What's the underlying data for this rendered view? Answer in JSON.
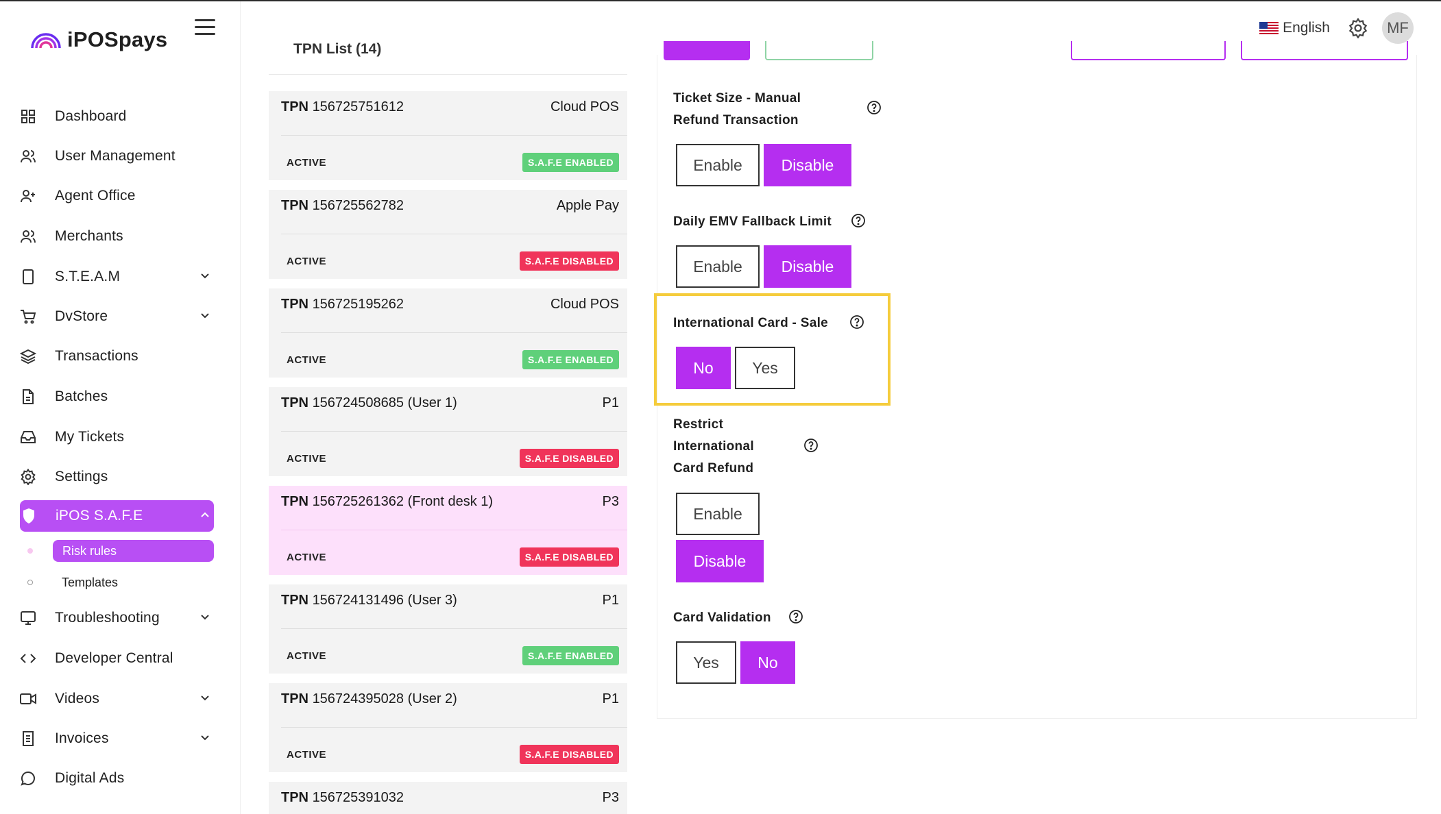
{
  "app": {
    "brand": "iPOSpays"
  },
  "header": {
    "language": "English",
    "avatar_initials": "MF"
  },
  "sidebar": {
    "items": [
      {
        "label": "Dashboard",
        "icon": "grid-icon"
      },
      {
        "label": "User Management",
        "icon": "users-icon"
      },
      {
        "label": "Agent Office",
        "icon": "user-plus-icon"
      },
      {
        "label": "Merchants",
        "icon": "users-icon"
      },
      {
        "label": "S.T.E.A.M",
        "icon": "tablet-icon"
      },
      {
        "label": "DvStore",
        "icon": "cart-icon"
      },
      {
        "label": "Transactions",
        "icon": "layers-icon"
      },
      {
        "label": "Batches",
        "icon": "file-icon"
      },
      {
        "label": "My Tickets",
        "icon": "inbox-icon"
      },
      {
        "label": "Settings",
        "icon": "gear-icon"
      },
      {
        "label": "iPOS S.A.F.E",
        "icon": "shield-icon"
      },
      {
        "label": "Troubleshooting",
        "icon": "monitor-icon"
      },
      {
        "label": "Developer Central",
        "icon": "code-icon"
      },
      {
        "label": "Videos",
        "icon": "video-icon"
      },
      {
        "label": "Invoices",
        "icon": "invoice-icon"
      },
      {
        "label": "Digital Ads",
        "icon": "chat-icon"
      }
    ],
    "sub_items": [
      {
        "label": "Risk rules"
      },
      {
        "label": "Templates"
      }
    ]
  },
  "tpn_list": {
    "header": "TPN List (14)",
    "items": [
      {
        "prefix": "TPN",
        "id": "156725751612",
        "type": "Cloud POS",
        "status": "ACTIVE",
        "safe": "S.A.F.E ENABLED"
      },
      {
        "prefix": "TPN",
        "id": "156725562782",
        "type": "Apple Pay",
        "status": "ACTIVE",
        "safe": "S.A.F.E DISABLED"
      },
      {
        "prefix": "TPN",
        "id": "156725195262",
        "type": "Cloud POS",
        "status": "ACTIVE",
        "safe": "S.A.F.E ENABLED"
      },
      {
        "prefix": "TPN",
        "id": "156724508685 (User 1)",
        "type": "P1",
        "status": "ACTIVE",
        "safe": "S.A.F.E DISABLED"
      },
      {
        "prefix": "TPN",
        "id": "156725261362 (Front desk 1)",
        "type": "P3",
        "status": "ACTIVE",
        "safe": "S.A.F.E DISABLED"
      },
      {
        "prefix": "TPN",
        "id": "156724131496 (User 3)",
        "type": "P1",
        "status": "ACTIVE",
        "safe": "S.A.F.E ENABLED"
      },
      {
        "prefix": "TPN",
        "id": "156724395028 (User 2)",
        "type": "P1",
        "status": "ACTIVE",
        "safe": "S.A.F.E DISABLED"
      },
      {
        "prefix": "TPN",
        "id": "156725391032",
        "type": "P3",
        "status": "",
        "safe": ""
      }
    ]
  },
  "rules": {
    "ticket_size_manual_refund": {
      "label_line1": "Ticket Size - Manual",
      "label_line2": "Refund Transaction",
      "opt1": "Enable",
      "opt2": "Disable",
      "selected": "Disable"
    },
    "daily_emv_fallback": {
      "label": "Daily EMV Fallback Limit",
      "opt1": "Enable",
      "opt2": "Disable",
      "selected": "Disable"
    },
    "intl_card_sale": {
      "label": "International Card - Sale",
      "opt1": "No",
      "opt2": "Yes",
      "selected": "No"
    },
    "restrict_intl_refund": {
      "label_line1": "Restrict",
      "label_line2": "International",
      "label_line3": "Card Refund",
      "opt1": "Enable",
      "opt2": "Disable",
      "selected": "Disable"
    },
    "card_validation": {
      "label": "Card Validation",
      "opt1": "Yes",
      "opt2": "No",
      "selected": "No"
    }
  },
  "colors": {
    "accent": "#b52ef0",
    "sidebar_active": "#b84ff4",
    "enabled": "#5fd07a",
    "disabled": "#f0345a",
    "highlight": "#f5cc3c"
  }
}
